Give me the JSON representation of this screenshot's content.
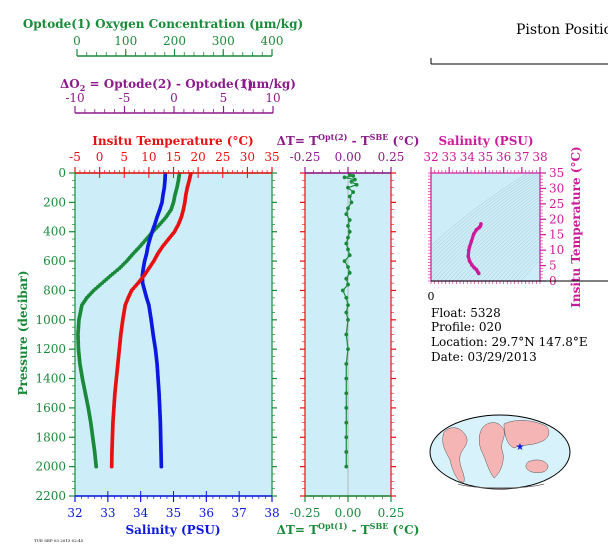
{
  "header": {
    "piston_title": "Piston Position"
  },
  "oxygen_axis": {
    "label": "Optode(1) Oxygen Concentration (µm/kg)",
    "ticks": [
      "0",
      "100",
      "200",
      "300",
      "400"
    ],
    "range": [
      0,
      400
    ],
    "color": "#1a8a3a"
  },
  "do2_axis": {
    "label_prefix": "ΔO",
    "label_sub": "2",
    "label_rest": " = Optode(2) - Optode(1)",
    "label_units": "(µm/kg)",
    "ticks": [
      "-10",
      "-5",
      "0",
      "5",
      "10"
    ],
    "range": [
      -10,
      10
    ],
    "color": "#8b1a8b"
  },
  "main_panel": {
    "temp_title": "Insitu Temperature (°C)",
    "temp_ticks": [
      "-5",
      "0",
      "5",
      "10",
      "15",
      "20",
      "25",
      "30",
      "35"
    ],
    "temp_range": [
      -5,
      35
    ],
    "sal_title": "Salinity (PSU)",
    "sal_ticks": [
      "32",
      "33",
      "34",
      "35",
      "36",
      "37",
      "38"
    ],
    "sal_range": [
      32,
      38
    ],
    "pressure_title": "Pressure (decibar)",
    "pressure_ticks": [
      "0",
      "200",
      "400",
      "600",
      "800",
      "1000",
      "1200",
      "1400",
      "1600",
      "1800",
      "2000",
      "2200"
    ],
    "pressure_range": [
      0,
      2200
    ],
    "background": "#cdeef8"
  },
  "dt_panel": {
    "top_title_prefix": "ΔT= T",
    "top_sup1": "Opt(2)",
    "top_mid": " - T",
    "top_sup2": "SBE",
    "top_suffix": " (°C)",
    "bottom_title_prefix": "ΔT= T",
    "bottom_sup1": "Opt(1)",
    "bottom_mid": " - T",
    "bottom_sup2": "SBE",
    "bottom_suffix": " (°C)",
    "ticks": [
      "-0.25",
      "0.00",
      "0.25"
    ],
    "range": [
      -0.25,
      0.25
    ]
  },
  "ts_panel": {
    "sal_title": "Salinity (PSU)",
    "sal_ticks": [
      "32",
      "33",
      "34",
      "35",
      "36",
      "37",
      "38"
    ],
    "temp_title": "Insitu Temperature (°C)",
    "temp_ticks": [
      "0",
      "5",
      "10",
      "15",
      "20",
      "25",
      "30",
      "35"
    ],
    "color": "#cc1a99"
  },
  "piston": {
    "zero_label": "0"
  },
  "float_info": {
    "float": "Float:  5328",
    "profile": "Profile:  020",
    "location": "Location:  29.7°N  147.8°E",
    "date": "Date:  03/29/2013"
  },
  "footer": {
    "stamp": "TUE SEP 03 2013 02:45"
  },
  "colors": {
    "temperature": "#e81010",
    "salinity": "#0a18e0",
    "oxygen": "#1a8a3a",
    "axis_green": "#1a8a3a",
    "axis_red": "#e81010",
    "axis_blue": "#0a18e0",
    "axis_magenta": "#cc1a99",
    "axis_purple": "#8b1a8b"
  },
  "chart_data": [
    {
      "type": "line",
      "name": "temperature-profile",
      "x_units": "°C",
      "y_units": "decibar",
      "points": [
        [
          18.5,
          5
        ],
        [
          18.2,
          50
        ],
        [
          17.8,
          100
        ],
        [
          17.5,
          150
        ],
        [
          17.3,
          200
        ],
        [
          17.0,
          250
        ],
        [
          16.6,
          300
        ],
        [
          16.0,
          350
        ],
        [
          15.2,
          400
        ],
        [
          14.0,
          450
        ],
        [
          12.8,
          500
        ],
        [
          11.8,
          550
        ],
        [
          11.0,
          600
        ],
        [
          10.0,
          650
        ],
        [
          9.0,
          700
        ],
        [
          7.8,
          750
        ],
        [
          6.5,
          800
        ],
        [
          5.8,
          850
        ],
        [
          5.2,
          900
        ],
        [
          4.7,
          1000
        ],
        [
          4.3,
          1100
        ],
        [
          4.0,
          1200
        ],
        [
          3.7,
          1300
        ],
        [
          3.4,
          1400
        ],
        [
          3.1,
          1500
        ],
        [
          2.9,
          1600
        ],
        [
          2.7,
          1700
        ],
        [
          2.6,
          1800
        ],
        [
          2.5,
          1900
        ],
        [
          2.45,
          2000
        ]
      ]
    },
    {
      "type": "line",
      "name": "salinity-profile",
      "x_units": "PSU",
      "y_units": "decibar",
      "points": [
        [
          34.75,
          5
        ],
        [
          34.74,
          50
        ],
        [
          34.72,
          100
        ],
        [
          34.68,
          150
        ],
        [
          34.65,
          200
        ],
        [
          34.58,
          250
        ],
        [
          34.5,
          300
        ],
        [
          34.43,
          350
        ],
        [
          34.35,
          400
        ],
        [
          34.28,
          450
        ],
        [
          34.22,
          500
        ],
        [
          34.18,
          550
        ],
        [
          34.12,
          600
        ],
        [
          34.08,
          650
        ],
        [
          34.05,
          700
        ],
        [
          34.06,
          750
        ],
        [
          34.12,
          800
        ],
        [
          34.18,
          850
        ],
        [
          34.25,
          900
        ],
        [
          34.32,
          1000
        ],
        [
          34.38,
          1100
        ],
        [
          34.45,
          1200
        ],
        [
          34.5,
          1300
        ],
        [
          34.53,
          1400
        ],
        [
          34.56,
          1500
        ],
        [
          34.58,
          1600
        ],
        [
          34.6,
          1700
        ],
        [
          34.61,
          1800
        ],
        [
          34.62,
          1900
        ],
        [
          34.63,
          2000
        ]
      ]
    },
    {
      "type": "line",
      "name": "oxygen-profile",
      "x_units": "µm/kg",
      "y_units": "decibar",
      "points": [
        [
          212,
          5
        ],
        [
          210,
          50
        ],
        [
          207,
          100
        ],
        [
          203,
          150
        ],
        [
          200,
          200
        ],
        [
          195,
          250
        ],
        [
          185,
          300
        ],
        [
          172,
          350
        ],
        [
          158,
          400
        ],
        [
          145,
          450
        ],
        [
          132,
          500
        ],
        [
          118,
          550
        ],
        [
          105,
          600
        ],
        [
          90,
          650
        ],
        [
          72,
          700
        ],
        [
          55,
          750
        ],
        [
          38,
          800
        ],
        [
          24,
          850
        ],
        [
          14,
          900
        ],
        [
          8,
          1000
        ],
        [
          6,
          1100
        ],
        [
          7,
          1200
        ],
        [
          10,
          1300
        ],
        [
          15,
          1400
        ],
        [
          21,
          1500
        ],
        [
          27,
          1600
        ],
        [
          32,
          1700
        ],
        [
          36,
          1800
        ],
        [
          40,
          1900
        ],
        [
          43,
          2000
        ]
      ]
    },
    {
      "type": "scatter",
      "name": "delta-t-opt2-minus-sbe",
      "x_units": "°C",
      "y_units": "decibar",
      "points": [
        [
          0.01,
          10
        ],
        [
          0.03,
          20
        ],
        [
          -0.02,
          30
        ],
        [
          0.04,
          45
        ],
        [
          0.02,
          60
        ],
        [
          0.05,
          80
        ],
        [
          0.0,
          100
        ],
        [
          0.03,
          130
        ],
        [
          0.01,
          160
        ],
        [
          0.02,
          200
        ],
        [
          0.0,
          240
        ],
        [
          -0.01,
          280
        ],
        [
          0.01,
          320
        ],
        [
          0.0,
          360
        ],
        [
          0.01,
          400
        ],
        [
          0.0,
          440
        ],
        [
          -0.01,
          480
        ],
        [
          0.0,
          520
        ],
        [
          0.01,
          560
        ],
        [
          -0.02,
          600
        ],
        [
          0.0,
          640
        ],
        [
          0.01,
          680
        ],
        [
          -0.01,
          720
        ],
        [
          0.0,
          760
        ],
        [
          -0.03,
          800
        ],
        [
          -0.01,
          850
        ],
        [
          0.0,
          900
        ],
        [
          -0.01,
          950
        ],
        [
          0.0,
          1000
        ],
        [
          -0.01,
          1100
        ],
        [
          0.0,
          1200
        ],
        [
          -0.01,
          1300
        ],
        [
          -0.01,
          1400
        ],
        [
          -0.01,
          1500
        ],
        [
          -0.01,
          1600
        ],
        [
          -0.01,
          1700
        ],
        [
          -0.01,
          1800
        ],
        [
          -0.01,
          1900
        ],
        [
          -0.01,
          2000
        ]
      ]
    },
    {
      "type": "line",
      "name": "ts-diagram",
      "x_units": "PSU",
      "y_units": "°C",
      "points": [
        [
          34.63,
          2.45
        ],
        [
          34.58,
          2.9
        ],
        [
          34.5,
          3.7
        ],
        [
          34.38,
          4.3
        ],
        [
          34.25,
          5.2
        ],
        [
          34.12,
          6.5
        ],
        [
          34.05,
          8
        ],
        [
          34.08,
          10
        ],
        [
          34.12,
          11
        ],
        [
          34.22,
          12.8
        ],
        [
          34.35,
          15.2
        ],
        [
          34.5,
          16.6
        ],
        [
          34.65,
          17.3
        ],
        [
          34.72,
          17.8
        ],
        [
          34.75,
          18.5
        ]
      ]
    }
  ]
}
